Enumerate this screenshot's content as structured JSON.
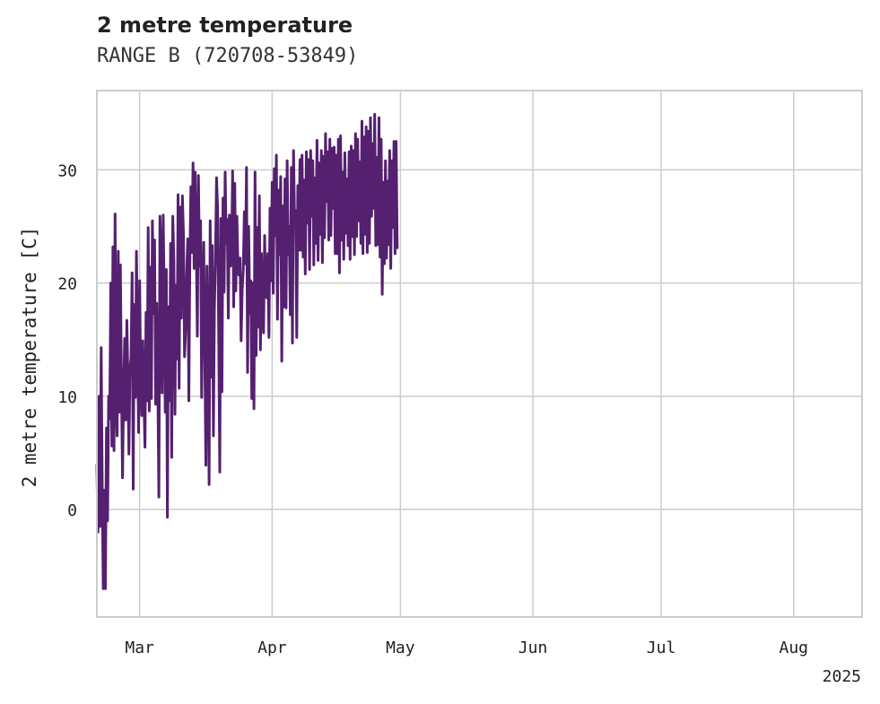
{
  "chart_data": {
    "type": "line",
    "title": "2 metre temperature",
    "subtitle": "RANGE B (720708-53849)",
    "ylabel": "2 metre temperature [C]",
    "xlabel": "",
    "year_label": "2025",
    "xlim": [
      "2025-02-19",
      "2025-08-17"
    ],
    "ylim": [
      -9.5,
      37
    ],
    "grid": true,
    "line_color": "#54206f",
    "x_ticks": [
      {
        "date": "2025-03-01",
        "label": "Mar"
      },
      {
        "date": "2025-04-01",
        "label": "Apr"
      },
      {
        "date": "2025-05-01",
        "label": "May"
      },
      {
        "date": "2025-06-01",
        "label": "Jun"
      },
      {
        "date": "2025-07-01",
        "label": "Jul"
      },
      {
        "date": "2025-08-01",
        "label": "Aug"
      }
    ],
    "y_ticks": [
      {
        "value": 0,
        "label": "0"
      },
      {
        "value": 10,
        "label": "10"
      },
      {
        "value": 20,
        "label": "20"
      },
      {
        "value": 30,
        "label": "30"
      }
    ],
    "series": [
      {
        "start": "2025-02-19",
        "step_days": 0.25,
        "values": [
          4,
          -2,
          10,
          -1.5,
          14.3,
          1.5,
          -7,
          1.7,
          -7,
          7.2,
          -1,
          10,
          8,
          20,
          5.6,
          23.2,
          5.2,
          26.1,
          9.5,
          6.5,
          22.8,
          8.6,
          21.6,
          10.6,
          2.8,
          10.6,
          15.1,
          7.9,
          16.7,
          12.1,
          4.9,
          12.4,
          13.4,
          20.9,
          1.8,
          18.1,
          9.9,
          22.8,
          14.2,
          6.8,
          20.2,
          11,
          8.3,
          14.9,
          9.9,
          5.5,
          17.4,
          9.6,
          24.9,
          8.7,
          21.4,
          9.8,
          25.5,
          17.3,
          23.8,
          9.3,
          18.2,
          11.4,
          1.1,
          25.9,
          22.5,
          10.3,
          26,
          18.8,
          8.6,
          21.2,
          -0.7,
          17.9,
          9.6,
          23.5,
          4.6,
          25.9,
          22.1,
          8.4,
          19.8,
          13.3,
          27.8,
          10.7,
          26.7,
          16.9,
          27.7,
          24.4,
          13.5,
          15.8,
          20.8,
          23.9,
          9.6,
          21.6,
          28.5,
          22.7,
          30.6,
          21.3,
          29.8,
          23.4,
          15.3,
          29.5,
          21.5,
          25.5,
          9.9,
          17.9,
          23.6,
          13.8,
          3.9,
          21.5,
          13.6,
          2.2,
          25.5,
          11.7,
          23.3,
          6.5,
          17.7,
          22.1,
          29.3,
          26.6,
          15.5,
          3.3,
          25.7,
          10.4,
          27.5,
          19.2,
          29.8,
          23.5,
          25.6,
          16.9,
          26,
          21.5,
          22,
          29.9,
          17.9,
          28.8,
          19.3,
          25.9,
          21.4,
          20.7,
          22.2,
          14.9,
          19.4,
          21.2,
          26.3,
          21.7,
          30.2,
          12.1,
          25,
          17.3,
          20.2,
          9.8,
          20,
          8.9,
          29.8,
          13.6,
          24.9,
          16.1,
          27.7,
          14.1,
          22.6,
          18.1,
          15.6,
          24.2,
          19,
          18.7,
          22.6,
          15.2,
          26.6,
          20.2,
          28.9,
          19.1,
          30.1,
          24.2,
          31.3,
          16.8,
          28.2,
          22.5,
          29.4,
          13.1,
          26.8,
          17.9,
          29.2,
          17.8,
          30.8,
          22.5,
          25,
          17.2,
          30.2,
          14.7,
          31.7,
          25.4,
          26.4,
          15.2,
          28.6,
          22.9,
          30.9,
          22.9,
          31.3,
          22.3,
          29.1,
          20.8,
          31.6,
          25.3,
          30.9,
          21.2,
          31.7,
          25.9,
          30.8,
          21.6,
          29.3,
          23.5,
          32.6,
          22,
          30.6,
          24.3,
          31.7,
          21.8,
          31.2,
          24,
          33.2,
          27.2,
          31.6,
          23.8,
          32.7,
          24.2,
          31.9,
          26.6,
          32,
          22.6,
          31.3,
          22.6,
          32.7,
          20.9,
          33,
          23.8,
          29.8,
          22.1,
          31.5,
          24.4,
          29.2,
          23.3,
          31.6,
          22.1,
          32.1,
          24.1,
          31.7,
          22.5,
          33.2,
          24.1,
          32.7,
          25.5,
          30.7,
          23.5,
          34.3,
          22.6,
          32.9,
          24.3,
          33.8,
          22.7,
          33.4,
          23.5,
          34.6,
          25.9,
          32.3,
          26.6,
          34.9,
          23.3,
          31.1,
          23.4,
          34.6,
          22.3,
          32.7,
          19,
          28.9,
          21.7,
          30.8,
          22.2,
          29,
          23.4,
          31.7,
          21.3,
          30.8,
          24.9,
          32.5,
          22.6,
          32.5,
          23
        ]
      }
    ]
  }
}
